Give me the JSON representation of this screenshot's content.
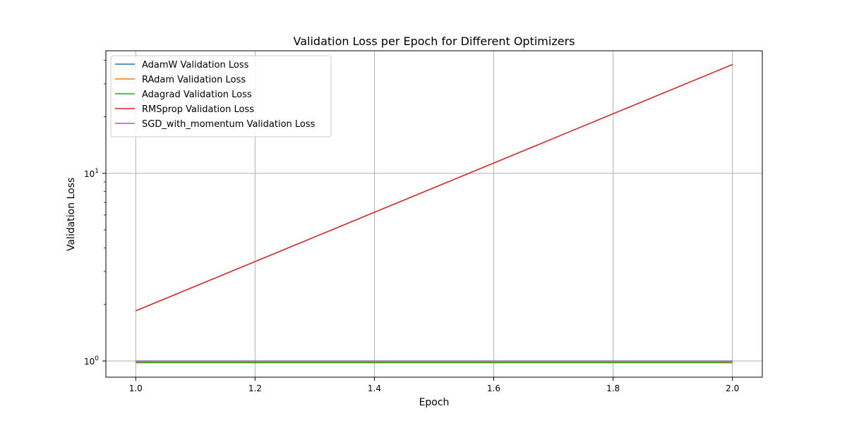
{
  "chart_data": {
    "type": "line",
    "title": "Validation Loss per Epoch for Different Optimizers",
    "xlabel": "Epoch",
    "ylabel": "Validation Loss",
    "yscale": "log",
    "xlim": [
      0.95,
      2.05
    ],
    "ylim": [
      0.82,
      45
    ],
    "x_ticks": [
      1.0,
      1.2,
      1.4,
      1.6,
      1.8,
      2.0
    ],
    "x_tick_labels": [
      "1.0",
      "1.2",
      "1.4",
      "1.6",
      "1.8",
      "2.0"
    ],
    "y_major_ticks": [
      1,
      10
    ],
    "y_tick_labels": [
      {
        "base": "10",
        "exp": "0"
      },
      {
        "base": "10",
        "exp": "1"
      }
    ],
    "y_minor_ticks": [
      2,
      3,
      4,
      5,
      6,
      7,
      8,
      9,
      20,
      30,
      40
    ],
    "grid": true,
    "legend_position": "top-left",
    "series": [
      {
        "name": "AdamW Validation Loss",
        "color": "#1f77b4",
        "x": [
          1.0,
          2.0
        ],
        "values": [
          0.99,
          0.99
        ]
      },
      {
        "name": "RAdam Validation Loss",
        "color": "#ff7f0e",
        "x": [
          1.0,
          2.0
        ],
        "values": [
          0.99,
          0.99
        ]
      },
      {
        "name": "Adagrad Validation Loss",
        "color": "#2ca02c",
        "x": [
          1.0,
          2.0
        ],
        "values": [
          0.98,
          0.98
        ]
      },
      {
        "name": "RMSprop Validation Loss",
        "color": "#d62728",
        "x": [
          1.0,
          2.0
        ],
        "values": [
          1.85,
          38.0
        ]
      },
      {
        "name": "SGD_with_momentum Validation Loss",
        "color": "#9467bd",
        "x": [
          1.0,
          2.0
        ],
        "values": [
          1.0,
          1.0
        ]
      }
    ]
  }
}
